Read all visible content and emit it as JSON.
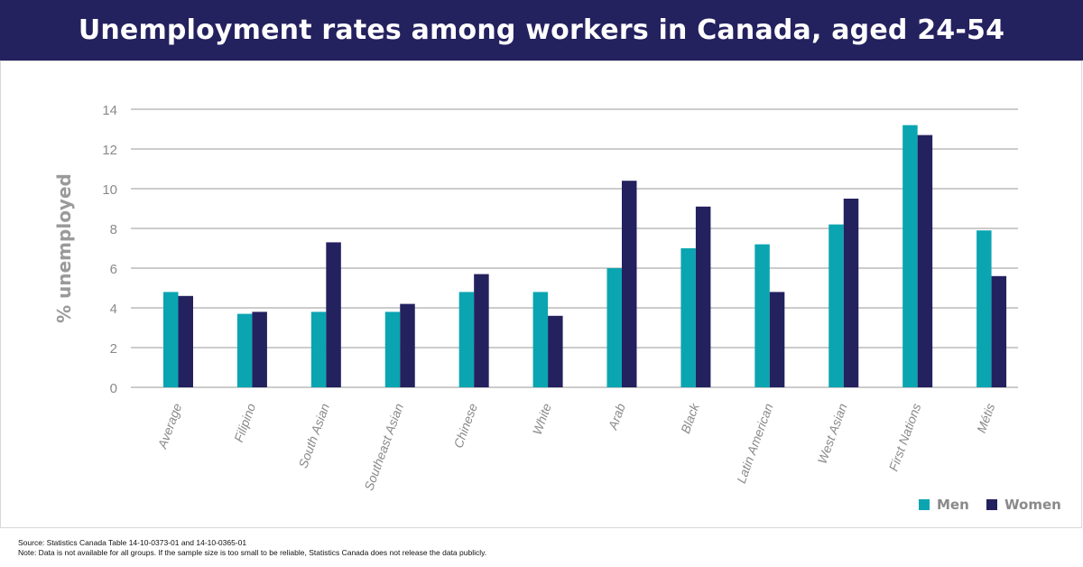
{
  "title": "Unemployment rates among workers in Canada, aged 24-54",
  "chart_data": {
    "type": "bar",
    "ylabel": "% unemployed",
    "xlabel": "",
    "ylim": [
      0,
      14
    ],
    "yticks": [
      0,
      2,
      4,
      6,
      8,
      10,
      12,
      14
    ],
    "grid": true,
    "legend_position": "bottom-right",
    "categories": [
      "Average",
      "Filipino",
      "South Asian",
      "Southeast Asian",
      "Chinese",
      "White",
      "Arab",
      "Black",
      "Latin American",
      "West Asian",
      "First Nations",
      "Métis"
    ],
    "series": [
      {
        "name": "Men",
        "color": "#0aa5b1",
        "values": [
          4.8,
          3.7,
          3.8,
          3.8,
          4.8,
          4.8,
          6.0,
          7.0,
          7.2,
          8.2,
          13.2,
          7.9
        ]
      },
      {
        "name": "Women",
        "color": "#24215f",
        "values": [
          4.6,
          3.8,
          7.3,
          4.2,
          5.7,
          3.6,
          10.4,
          9.1,
          4.8,
          9.5,
          12.7,
          5.6
        ]
      }
    ]
  },
  "footer": {
    "source": "Source: Statistics Canada Table 14-10-0373-01 and 14-10-0365-01",
    "note": "Note: Data is not available for all groups. If the sample size is too small to be reliable, Statistics Canada does not release the data publicly."
  }
}
